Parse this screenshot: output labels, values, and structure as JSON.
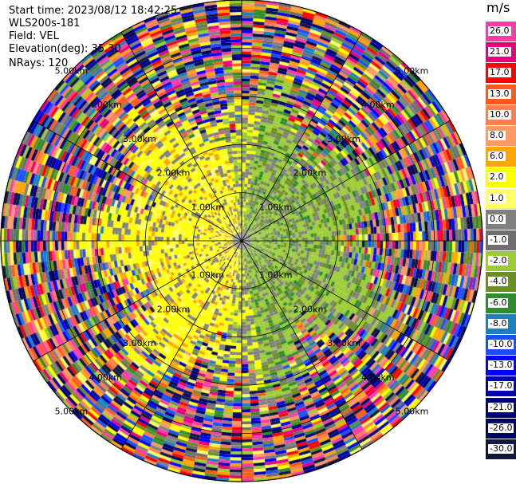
{
  "info": {
    "start_time": "Start time: 2023/08/12 18:42:25",
    "instrument": "WLS200s-181",
    "field": "Field: VEL",
    "elevation": "Elevation(deg): 35.30",
    "nrays": "NRays: 120"
  },
  "chart_data": {
    "type": "heatmap",
    "projection": "polar-ppi",
    "title": "",
    "field": "VEL",
    "units": "m/s",
    "nrays": 120,
    "elevation_deg": 35.3,
    "range_rings_km": [
      1.0,
      2.0,
      3.0,
      4.0,
      5.0
    ],
    "range_ring_labels": [
      "1.00km",
      "2.00km",
      "3.00km",
      "4.00km",
      "5.00km"
    ],
    "max_range_km": 5.0,
    "azimuth_spokes_deg": [
      0,
      30,
      60,
      90,
      120,
      150,
      180,
      210,
      240,
      270,
      300,
      330
    ],
    "colorbar": {
      "unit": "m/s",
      "levels": [
        "26.0",
        "21.0",
        "17.0",
        "13.0",
        "10.0",
        "8.0",
        "6.0",
        "2.0",
        "1.0",
        "0.0",
        "-1.0",
        "-2.0",
        "-4.0",
        "-6.0",
        "-8.0",
        "-10.0",
        "-13.0",
        "-17.0",
        "-21.0",
        "-26.0",
        "-30.0"
      ],
      "colors": [
        "#ff3aa8",
        "#e6007e",
        "#ff0000",
        "#ff5a1a",
        "#ff7f50",
        "#ff9a66",
        "#ffa500",
        "#ffff00",
        "#ffff66",
        "#808080",
        "#6e6e6e",
        "#9acd32",
        "#6b8e23",
        "#2e8b2e",
        "#1e7fbf",
        "#1a4fff",
        "#0000ff",
        "#0000b0",
        "#00007a",
        "#000060",
        "#101840"
      ]
    },
    "structure": {
      "near_field_positive_sector": "west (yellow/orange, +1 to +6 m/s)",
      "near_field_negative_sector": "east (green, -1 to -4 m/s)",
      "far_field": "noise (random full-range colors)"
    }
  }
}
